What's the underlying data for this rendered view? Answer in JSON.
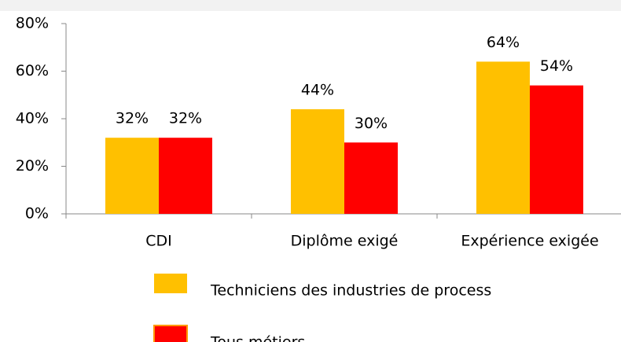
{
  "chart_data": {
    "type": "bar",
    "categories": [
      "CDI",
      "Diplôme exigé",
      "Expérience exigée"
    ],
    "series": [
      {
        "name": "Techniciens des industries de process",
        "color": "#ffc000",
        "values": [
          32,
          44,
          64
        ],
        "value_labels": [
          "32%",
          "44%",
          "64%"
        ]
      },
      {
        "name": "Tous métiers",
        "color": "#ff0000",
        "values": [
          32,
          30,
          54
        ],
        "value_labels": [
          "32%",
          "30%",
          "54%"
        ]
      }
    ],
    "ylim": [
      0,
      80
    ],
    "yticks": [
      {
        "value": 0,
        "label": "0%"
      },
      {
        "value": 20,
        "label": "20%"
      },
      {
        "value": 40,
        "label": "40%"
      },
      {
        "value": 60,
        "label": "60%"
      },
      {
        "value": 80,
        "label": "80%"
      }
    ],
    "grid": false
  }
}
